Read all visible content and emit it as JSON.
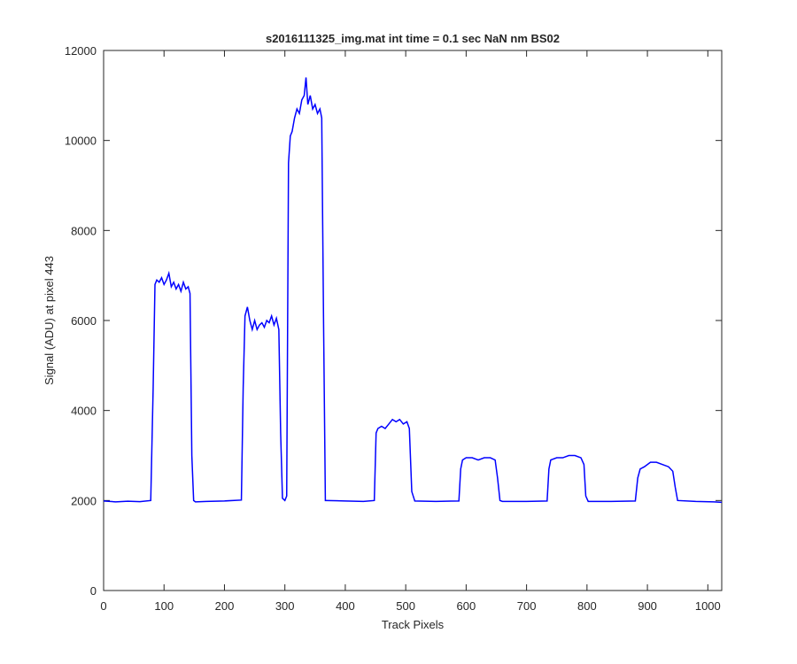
{
  "chart_data": {
    "type": "line",
    "title": "s2016111325_img.mat int time = 0.1 sec  NaN nm BS02",
    "x_label": "Track Pixels",
    "y_label": "Signal (ADU) at pixel 443",
    "xlim": [
      0,
      1023
    ],
    "ylim": [
      0,
      12000
    ],
    "xticks": [
      0,
      100,
      200,
      300,
      400,
      500,
      600,
      700,
      800,
      900,
      1000
    ],
    "yticks": [
      0,
      2000,
      4000,
      6000,
      8000,
      10000,
      12000
    ],
    "series": [
      {
        "color": "#0000ff",
        "x": [
          0,
          20,
          40,
          60,
          78,
          82,
          85,
          88,
          92,
          96,
          100,
          104,
          108,
          112,
          116,
          120,
          124,
          128,
          132,
          136,
          140,
          143,
          146,
          149,
          152,
          170,
          200,
          228,
          231,
          234,
          238,
          242,
          246,
          250,
          254,
          258,
          262,
          266,
          270,
          274,
          278,
          282,
          286,
          290,
          293,
          296,
          300,
          303,
          306,
          309,
          312,
          316,
          320,
          324,
          328,
          332,
          335,
          338,
          342,
          346,
          350,
          354,
          358,
          361,
          364,
          367,
          370,
          400,
          430,
          448,
          451,
          454,
          460,
          466,
          472,
          478,
          484,
          490,
          496,
          502,
          506,
          510,
          515,
          550,
          588,
          591,
          594,
          600,
          610,
          620,
          630,
          640,
          648,
          652,
          656,
          660,
          700,
          734,
          737,
          740,
          750,
          760,
          770,
          780,
          790,
          795,
          798,
          802,
          840,
          880,
          884,
          888,
          895,
          905,
          915,
          925,
          935,
          942,
          946,
          950,
          980,
          1010,
          1023
        ],
        "values": [
          1990,
          1970,
          1985,
          1975,
          2000,
          4500,
          6800,
          6900,
          6850,
          6950,
          6800,
          6900,
          7050,
          6750,
          6850,
          6700,
          6800,
          6650,
          6850,
          6700,
          6750,
          6600,
          3000,
          2000,
          1970,
          1980,
          1990,
          2010,
          4500,
          6100,
          6300,
          6000,
          5800,
          6000,
          5800,
          5900,
          5950,
          5850,
          6000,
          5950,
          6100,
          5900,
          6050,
          5800,
          3500,
          2050,
          2000,
          2100,
          9500,
          10100,
          10200,
          10500,
          10700,
          10600,
          10900,
          11000,
          11400,
          10800,
          11000,
          10700,
          10800,
          10600,
          10700,
          10500,
          6000,
          2000,
          2000,
          1990,
          1980,
          2000,
          3500,
          3600,
          3650,
          3600,
          3700,
          3800,
          3750,
          3800,
          3700,
          3750,
          3600,
          2200,
          1990,
          1980,
          1990,
          2700,
          2900,
          2950,
          2950,
          2900,
          2950,
          2950,
          2900,
          2500,
          2000,
          1980,
          1980,
          1990,
          2700,
          2900,
          2950,
          2950,
          3000,
          3000,
          2950,
          2800,
          2100,
          1980,
          1980,
          1990,
          2500,
          2700,
          2750,
          2850,
          2850,
          2800,
          2750,
          2650,
          2300,
          2000,
          1980,
          1970,
          1960
        ]
      }
    ]
  }
}
